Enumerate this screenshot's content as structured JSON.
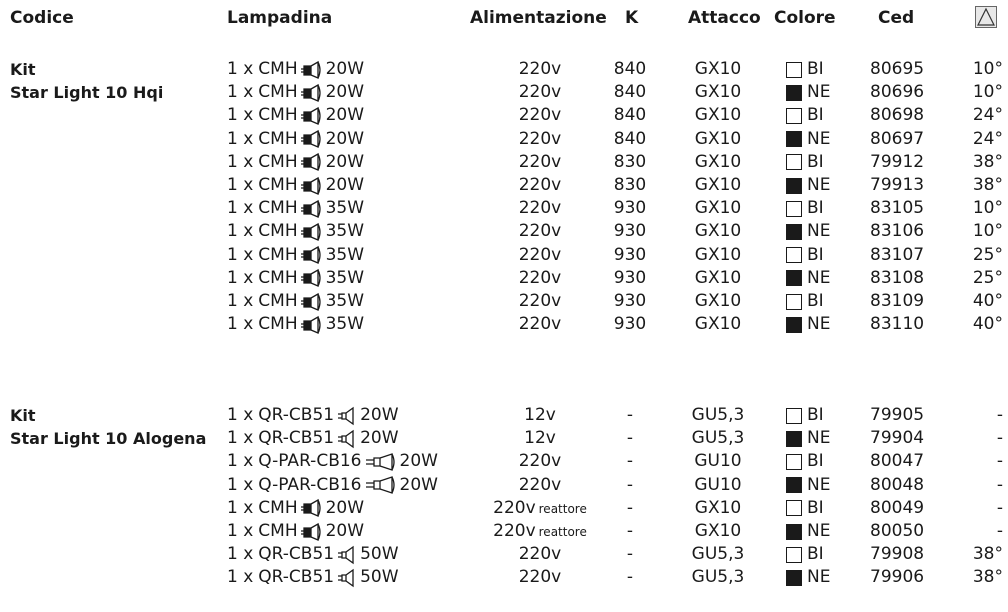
{
  "headers": {
    "codice": "Codice",
    "lampadina": "Lampadina",
    "alimentazione": "Alimentazione",
    "k": "K",
    "attacco": "Attacco",
    "colore": "Colore",
    "ced": "Ced"
  },
  "groups": [
    {
      "title": "Kit",
      "subtitle": "Star Light 10 Hqi",
      "rows": [
        {
          "qty": "1 x",
          "lamp": "CMH",
          "icon": "cmh-bulb-icon",
          "watt": "20W",
          "volt": "220v",
          "note": "",
          "k": "840",
          "attacco": "GX10",
          "fill": false,
          "colore": "BI",
          "ced": "80695",
          "angle": "10°"
        },
        {
          "qty": "1 x",
          "lamp": "CMH",
          "icon": "cmh-bulb-icon",
          "watt": "20W",
          "volt": "220v",
          "note": "",
          "k": "840",
          "attacco": "GX10",
          "fill": true,
          "colore": "NE",
          "ced": "80696",
          "angle": "10°"
        },
        {
          "qty": "1 x",
          "lamp": "CMH",
          "icon": "cmh-bulb-icon",
          "watt": "20W",
          "volt": "220v",
          "note": "",
          "k": "840",
          "attacco": "GX10",
          "fill": false,
          "colore": "BI",
          "ced": "80698",
          "angle": "24°"
        },
        {
          "qty": "1 x",
          "lamp": "CMH",
          "icon": "cmh-bulb-icon",
          "watt": "20W",
          "volt": "220v",
          "note": "",
          "k": "840",
          "attacco": "GX10",
          "fill": true,
          "colore": "NE",
          "ced": "80697",
          "angle": "24°"
        },
        {
          "qty": "1 x",
          "lamp": "CMH",
          "icon": "cmh-bulb-icon",
          "watt": "20W",
          "volt": "220v",
          "note": "",
          "k": "830",
          "attacco": "GX10",
          "fill": false,
          "colore": "BI",
          "ced": "79912",
          "angle": "38°"
        },
        {
          "qty": "1 x",
          "lamp": "CMH",
          "icon": "cmh-bulb-icon",
          "watt": "20W",
          "volt": "220v",
          "note": "",
          "k": "830",
          "attacco": "GX10",
          "fill": true,
          "colore": "NE",
          "ced": "79913",
          "angle": "38°"
        },
        {
          "qty": "1 x",
          "lamp": "CMH",
          "icon": "cmh-bulb-icon",
          "watt": "35W",
          "volt": "220v",
          "note": "",
          "k": "930",
          "attacco": "GX10",
          "fill": false,
          "colore": "BI",
          "ced": "83105",
          "angle": "10°"
        },
        {
          "qty": "1 x",
          "lamp": "CMH",
          "icon": "cmh-bulb-icon",
          "watt": "35W",
          "volt": "220v",
          "note": "",
          "k": "930",
          "attacco": "GX10",
          "fill": true,
          "colore": "NE",
          "ced": "83106",
          "angle": "10°"
        },
        {
          "qty": "1 x",
          "lamp": "CMH",
          "icon": "cmh-bulb-icon",
          "watt": "35W",
          "volt": "220v",
          "note": "",
          "k": "930",
          "attacco": "GX10",
          "fill": false,
          "colore": "BI",
          "ced": "83107",
          "angle": "25°"
        },
        {
          "qty": "1 x",
          "lamp": "CMH",
          "icon": "cmh-bulb-icon",
          "watt": "35W",
          "volt": "220v",
          "note": "",
          "k": "930",
          "attacco": "GX10",
          "fill": true,
          "colore": "NE",
          "ced": "83108",
          "angle": "25°"
        },
        {
          "qty": "1 x",
          "lamp": "CMH",
          "icon": "cmh-bulb-icon",
          "watt": "35W",
          "volt": "220v",
          "note": "",
          "k": "930",
          "attacco": "GX10",
          "fill": false,
          "colore": "BI",
          "ced": "83109",
          "angle": "40°"
        },
        {
          "qty": "1 x",
          "lamp": "CMH",
          "icon": "cmh-bulb-icon",
          "watt": "35W",
          "volt": "220v",
          "note": "",
          "k": "930",
          "attacco": "GX10",
          "fill": true,
          "colore": "NE",
          "ced": "83110",
          "angle": "40°"
        }
      ]
    },
    {
      "title": "Kit",
      "subtitle": "Star Light 10 Alogena",
      "rows": [
        {
          "qty": "1 x",
          "lamp": "QR-CB51",
          "icon": "qr-bulb-icon",
          "watt": "20W",
          "volt": "12v",
          "note": "",
          "k": "-",
          "attacco": "GU5,3",
          "fill": false,
          "colore": "BI",
          "ced": "79905",
          "angle": "-"
        },
        {
          "qty": "1 x",
          "lamp": "QR-CB51",
          "icon": "qr-bulb-icon",
          "watt": "20W",
          "volt": "12v",
          "note": "",
          "k": "-",
          "attacco": "GU5,3",
          "fill": true,
          "colore": "NE",
          "ced": "79904",
          "angle": "-"
        },
        {
          "qty": "1 x",
          "lamp": "Q-PAR-CB16",
          "icon": "qpar-bulb-icon",
          "watt": "20W",
          "volt": "220v",
          "note": "",
          "k": "-",
          "attacco": "GU10",
          "fill": false,
          "colore": "BI",
          "ced": "80047",
          "angle": "-"
        },
        {
          "qty": "1 x",
          "lamp": "Q-PAR-CB16",
          "icon": "qpar-bulb-icon",
          "watt": "20W",
          "volt": "220v",
          "note": "",
          "k": "-",
          "attacco": "GU10",
          "fill": true,
          "colore": "NE",
          "ced": "80048",
          "angle": "-"
        },
        {
          "qty": "1 x",
          "lamp": "CMH",
          "icon": "cmh-bulb-icon",
          "watt": "20W",
          "volt": "220v",
          "note": "reattore",
          "k": "-",
          "attacco": "GX10",
          "fill": false,
          "colore": "BI",
          "ced": "80049",
          "angle": "-"
        },
        {
          "qty": "1 x",
          "lamp": "CMH",
          "icon": "cmh-bulb-icon",
          "watt": "20W",
          "volt": "220v",
          "note": "reattore",
          "k": "-",
          "attacco": "GX10",
          "fill": true,
          "colore": "NE",
          "ced": "80050",
          "angle": "-"
        },
        {
          "qty": "1 x",
          "lamp": "QR-CB51",
          "icon": "qr-bulb-icon",
          "watt": "50W",
          "volt": "220v",
          "note": "",
          "k": "-",
          "attacco": "GU5,3",
          "fill": false,
          "colore": "BI",
          "ced": "79908",
          "angle": "38°"
        },
        {
          "qty": "1 x",
          "lamp": "QR-CB51",
          "icon": "qr-bulb-icon",
          "watt": "50W",
          "volt": "220v",
          "note": "",
          "k": "-",
          "attacco": "GU5,3",
          "fill": true,
          "colore": "NE",
          "ced": "79906",
          "angle": "38°"
        }
      ]
    }
  ]
}
